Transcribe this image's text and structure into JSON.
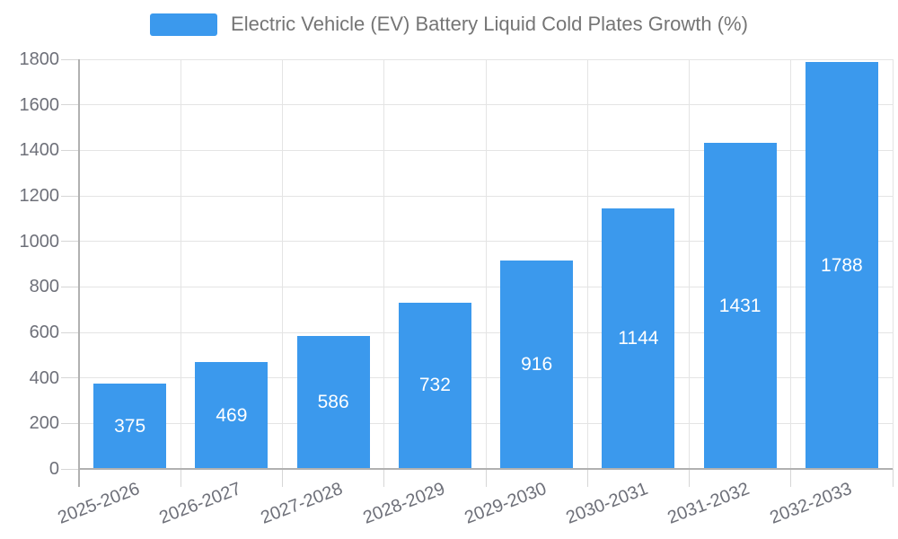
{
  "legend": {
    "label": "Electric Vehicle (EV) Battery Liquid Cold Plates Growth (%)"
  },
  "chart_data": {
    "type": "bar",
    "title": "Electric Vehicle (EV) Battery Liquid Cold Plates Growth (%)",
    "series_name": "Electric Vehicle (EV) Battery Liquid Cold Plates Growth (%)",
    "categories": [
      "2025-2026",
      "2026-2027",
      "2027-2028",
      "2028-2029",
      "2029-2030",
      "2030-2031",
      "2031-2032",
      "2032-2033"
    ],
    "values": [
      375,
      469,
      586,
      732,
      916,
      1144,
      1431,
      1788
    ],
    "xlabel": "",
    "ylabel": "",
    "ylim": [
      0,
      1800
    ],
    "yticks": [
      0,
      200,
      400,
      600,
      800,
      1000,
      1200,
      1400,
      1600,
      1800
    ],
    "grid": true,
    "legend_position": "top-center",
    "value_labels": "inside-center",
    "colors": {
      "bar": "#3B99ED",
      "value_label": "#FFFFFF",
      "axis_line": "#B1B1B1",
      "grid_line": "#E4E4E4",
      "tick_line": "#D6D6D6",
      "axis_text": "#6E7079",
      "legend_text": "#757575",
      "background": "#FFFFFF"
    }
  }
}
